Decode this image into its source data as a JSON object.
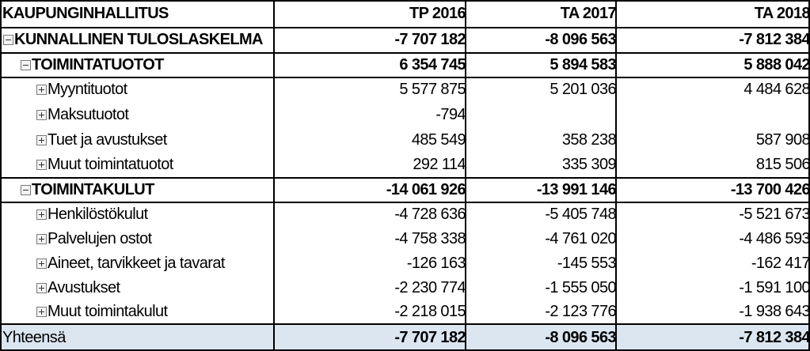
{
  "columns": [
    "KAUPUNGINHALLITUS",
    "TP 2016",
    "TA 2017",
    "TA 2018"
  ],
  "rows": [
    {
      "label": "KUNNALLINEN TULOSLASKELMA",
      "level": 0,
      "icon": "collapse-icon",
      "bold": true,
      "values": [
        "-7 707 182",
        "-8 096 563",
        "-7 812 384"
      ]
    },
    {
      "label": "TOIMINTATUOTOT",
      "level": 1,
      "icon": "collapse-icon",
      "bold": true,
      "values": [
        "6 354 745",
        "5 894 583",
        "5 888 042"
      ]
    },
    {
      "label": "Myyntituotot",
      "level": 2,
      "icon": "expand-icon",
      "bold": false,
      "values": [
        "5 577 875",
        "5 201 036",
        "4 484 628"
      ]
    },
    {
      "label": "Maksutuotot",
      "level": 2,
      "icon": "expand-icon",
      "bold": false,
      "values": [
        "-794",
        "",
        ""
      ]
    },
    {
      "label": "Tuet ja avustukset",
      "level": 2,
      "icon": "expand-icon",
      "bold": false,
      "values": [
        "485 549",
        "358 238",
        "587 908"
      ]
    },
    {
      "label": "Muut toimintatuotot",
      "level": 2,
      "icon": "expand-icon",
      "bold": false,
      "values": [
        "292 114",
        "335 309",
        "815 506"
      ]
    },
    {
      "label": "TOIMINTAKULUT",
      "level": 1,
      "icon": "collapse-icon",
      "bold": true,
      "values": [
        "-14 061 926",
        "-13 991 146",
        "-13 700 426"
      ]
    },
    {
      "label": "Henkilöstökulut",
      "level": 2,
      "icon": "expand-icon",
      "bold": false,
      "values": [
        "-4 728 636",
        "-5 405 748",
        "-5 521 673"
      ]
    },
    {
      "label": "Palvelujen ostot",
      "level": 2,
      "icon": "expand-icon",
      "bold": false,
      "values": [
        "-4 758 338",
        "-4 761 020",
        "-4 486 593"
      ]
    },
    {
      "label": "Aineet, tarvikkeet ja tavarat",
      "level": 2,
      "icon": "expand-icon",
      "bold": false,
      "values": [
        "-126 163",
        "-145 553",
        "-162 417"
      ]
    },
    {
      "label": "Avustukset",
      "level": 2,
      "icon": "expand-icon",
      "bold": false,
      "values": [
        "-2 230 774",
        "-1 555 050",
        "-1 591 100"
      ]
    },
    {
      "label": "Muut toimintakulut",
      "level": 2,
      "icon": "expand-icon",
      "bold": false,
      "values": [
        "-2 218 015",
        "-2 123 776",
        "-1 938 643"
      ]
    }
  ],
  "total": {
    "label": "Yhteensä",
    "values": [
      "-7 707 182",
      "-8 096 563",
      "-7 812 384"
    ]
  },
  "colors": {
    "total_row_bg": "#dce6f1",
    "border": "#000000"
  }
}
